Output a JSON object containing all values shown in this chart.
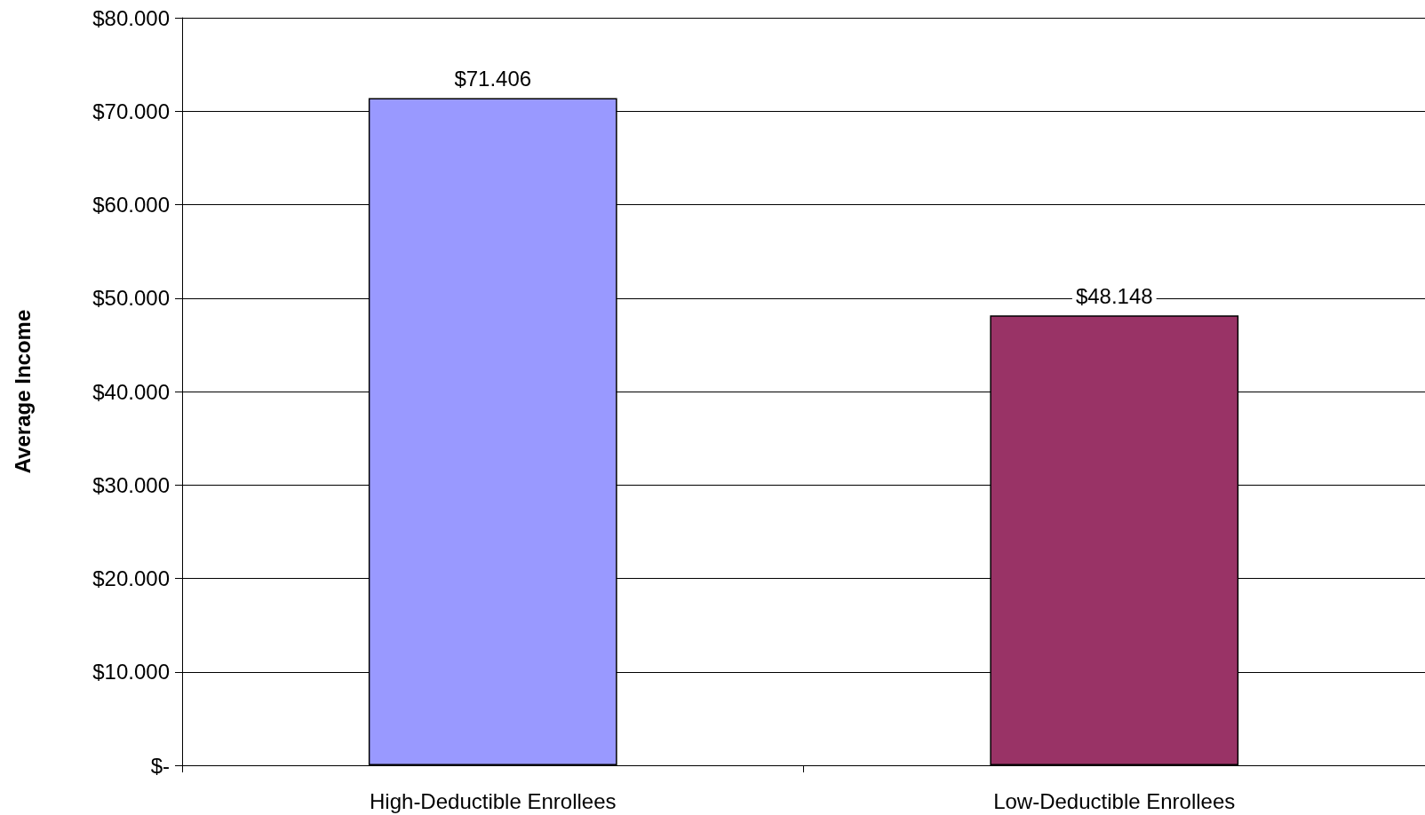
{
  "chart_data": {
    "type": "bar",
    "ylabel": "Average Income",
    "categories": [
      "High-Deductible Enrollees",
      "Low-Deductible Enrollees"
    ],
    "values": [
      71406,
      48148
    ],
    "colors": [
      "#9999ff",
      "#993366"
    ],
    "value_labels": [
      "$71.406",
      "$48.148"
    ],
    "ylim": [
      0,
      80000
    ],
    "yticks": [
      {
        "value": 0,
        "label": "$-"
      },
      {
        "value": 10000,
        "label": "$10.000"
      },
      {
        "value": 20000,
        "label": "$20.000"
      },
      {
        "value": 30000,
        "label": "$30.000"
      },
      {
        "value": 40000,
        "label": "$40.000"
      },
      {
        "value": 50000,
        "label": "$50.000"
      },
      {
        "value": 60000,
        "label": "$60.000"
      },
      {
        "value": 70000,
        "label": "$70.000"
      },
      {
        "value": 80000,
        "label": "$80.000"
      }
    ],
    "grid": "y"
  }
}
